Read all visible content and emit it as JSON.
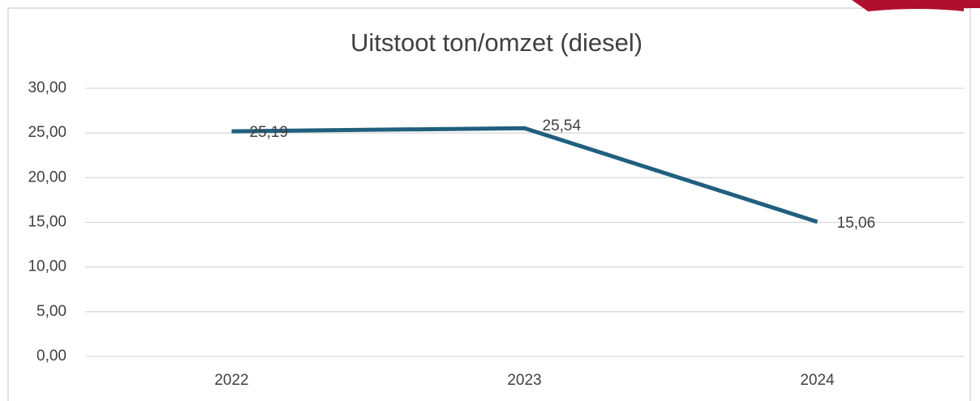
{
  "chart_data": {
    "type": "line",
    "title": "Uitstoot ton/omzet (diesel)",
    "categories": [
      "2022",
      "2023",
      "2024"
    ],
    "values": [
      25.19,
      25.54,
      15.06
    ],
    "value_labels": [
      "25,19",
      "25,54",
      "15,06"
    ],
    "color": "#215f7e",
    "ylim": [
      0,
      30
    ],
    "yticks": [
      {
        "value": 0,
        "label": "0,00"
      },
      {
        "value": 5,
        "label": "5,00"
      },
      {
        "value": 10,
        "label": "10,00"
      },
      {
        "value": 15,
        "label": "15,00"
      },
      {
        "value": 20,
        "label": "20,00"
      },
      {
        "value": 25,
        "label": "25,00"
      },
      {
        "value": 30,
        "label": "30,00"
      }
    ],
    "grid": true
  }
}
